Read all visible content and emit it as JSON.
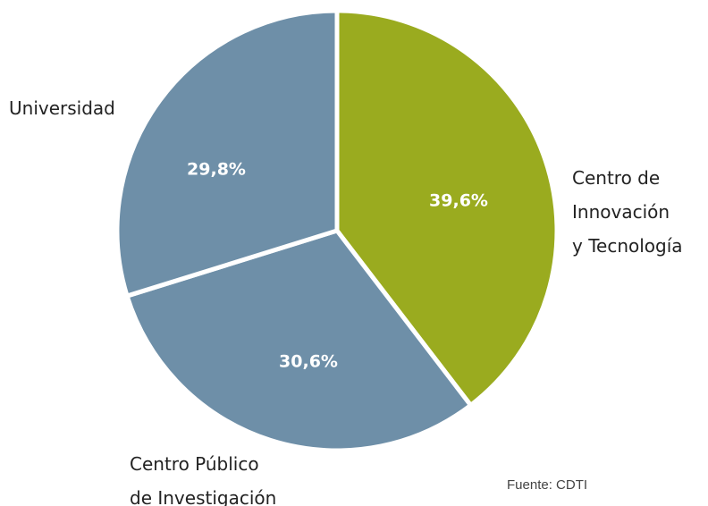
{
  "chart_data": {
    "type": "pie",
    "categories": [
      "Centro de\nInnovación\ny Tecnología",
      "Centro Público\nde Investigación",
      "Universidad"
    ],
    "values": [
      39.6,
      30.6,
      29.8
    ],
    "value_labels": [
      "39,6%",
      "30,6%",
      "29,8%"
    ],
    "colors": [
      "#9aab1f",
      "#6e8fa8",
      "#6e8fa8"
    ],
    "source": "Fuente: CDTI"
  }
}
